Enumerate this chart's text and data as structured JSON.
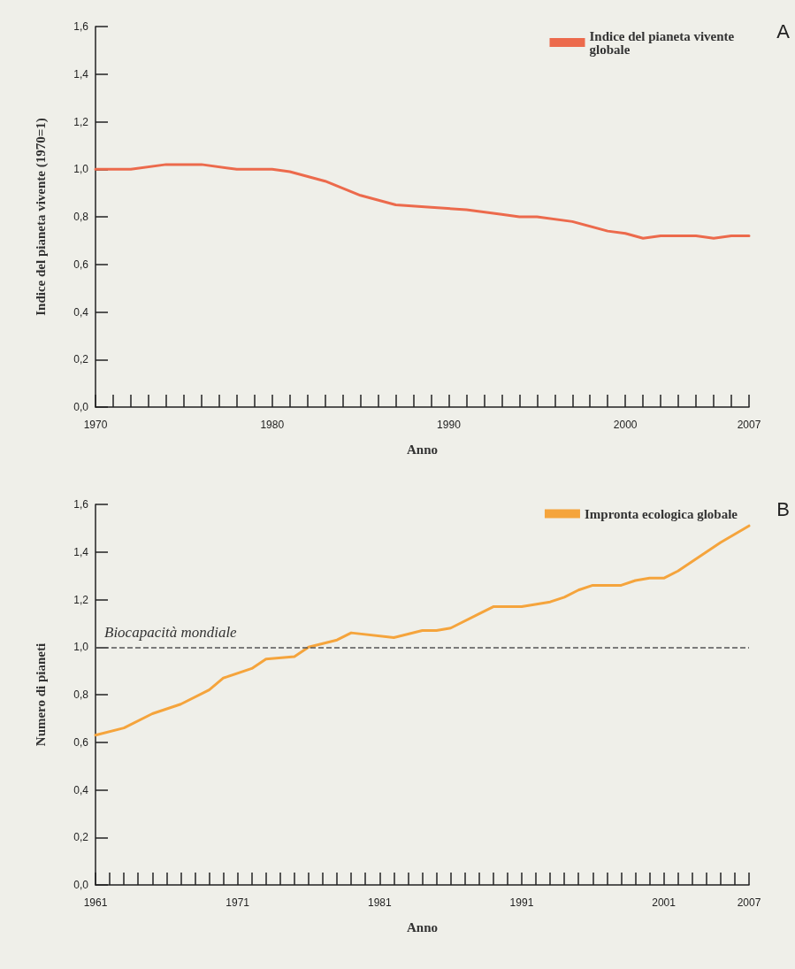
{
  "chart_data": [
    {
      "type": "line",
      "xlabel": "Anno",
      "ylabel": "Indice del pianeta vivente (1970=1)",
      "annotations": [
        "A"
      ],
      "legend": "top right",
      "grid": false,
      "marker": "none",
      "line_style": "solid",
      "x": [
        1970,
        1972,
        1974,
        1976,
        1978,
        1980,
        1981,
        1983,
        1985,
        1987,
        1989,
        1991,
        1993,
        1994,
        1995,
        1997,
        1999,
        2000,
        2001,
        2002,
        2004,
        2005,
        2006,
        2007
      ],
      "series": [
        {
          "name": "Indice del pianeta vivente globale",
          "color": "#ec6a4c",
          "values": [
            1.0,
            1.0,
            1.02,
            1.02,
            1.0,
            1.0,
            0.99,
            0.95,
            0.89,
            0.85,
            0.84,
            0.83,
            0.81,
            0.8,
            0.8,
            0.78,
            0.74,
            0.73,
            0.71,
            0.72,
            0.72,
            0.71,
            0.72,
            0.72
          ]
        }
      ],
      "xlim": [
        1970,
        2007
      ],
      "xticks": [
        1970,
        {
          "value": 1971,
          "label": null
        },
        {
          "value": 1972,
          "label": null
        },
        {
          "value": 1973,
          "label": null
        },
        {
          "value": 1974,
          "label": null
        },
        {
          "value": 1975,
          "label": null
        },
        {
          "value": 1976,
          "label": null
        },
        {
          "value": 1977,
          "label": null
        },
        {
          "value": 1978,
          "label": null
        },
        {
          "value": 1979,
          "label": null
        },
        1980,
        {
          "value": 1981,
          "label": null
        },
        {
          "value": 1982,
          "label": null
        },
        {
          "value": 1983,
          "label": null
        },
        {
          "value": 1984,
          "label": null
        },
        {
          "value": 1985,
          "label": null
        },
        {
          "value": 1986,
          "label": null
        },
        {
          "value": 1987,
          "label": null
        },
        {
          "value": 1988,
          "label": null
        },
        {
          "value": 1989,
          "label": null
        },
        1990,
        {
          "value": 1991,
          "label": null
        },
        {
          "value": 1992,
          "label": null
        },
        {
          "value": 1993,
          "label": null
        },
        {
          "value": 1994,
          "label": null
        },
        {
          "value": 1995,
          "label": null
        },
        {
          "value": 1996,
          "label": null
        },
        {
          "value": 1997,
          "label": null
        },
        {
          "value": 1998,
          "label": null
        },
        {
          "value": 1999,
          "label": null
        },
        2000,
        {
          "value": 2001,
          "label": null
        },
        {
          "value": 2002,
          "label": null
        },
        {
          "value": 2003,
          "label": null
        },
        {
          "value": 2004,
          "label": null
        },
        {
          "value": 2005,
          "label": null
        },
        {
          "value": 2006,
          "label": null
        },
        2007
      ],
      "ylim": [
        0,
        1.6
      ],
      "yticks": [
        {
          "value": 0,
          "label": "0,0"
        },
        {
          "value": 0.2,
          "label": "0,2"
        },
        {
          "value": 0.4,
          "label": "0,4"
        },
        {
          "value": 0.6,
          "label": "0,6"
        },
        {
          "value": 0.8,
          "label": "0,8"
        },
        {
          "value": 1.0,
          "label": "1,0"
        },
        {
          "value": 1.2,
          "label": "1,2"
        },
        {
          "value": 1.4,
          "label": "1,4"
        },
        {
          "value": 1.6,
          "label": "1,6"
        }
      ]
    },
    {
      "type": "line",
      "xlabel": "Anno",
      "ylabel": "Numero di pianeti",
      "annotations": [
        "B"
      ],
      "legend": "top right",
      "grid": false,
      "marker": "none",
      "line_style": "solid",
      "x": [
        1961,
        1963,
        1965,
        1967,
        1969,
        1970,
        1972,
        1973,
        1975,
        1976,
        1978,
        1979,
        1982,
        1984,
        1985,
        1986,
        1988,
        1989,
        1991,
        1993,
        1994,
        1995,
        1996,
        1998,
        1999,
        2000,
        2001,
        2002,
        2004,
        2005,
        2007
      ],
      "series": [
        {
          "name": "Impronta ecologica globale",
          "color": "#f5a43c",
          "values": [
            0.63,
            0.66,
            0.72,
            0.76,
            0.82,
            0.87,
            0.91,
            0.95,
            0.96,
            1.0,
            1.03,
            1.06,
            1.04,
            1.07,
            1.07,
            1.08,
            1.14,
            1.17,
            1.17,
            1.19,
            1.21,
            1.24,
            1.26,
            1.26,
            1.28,
            1.29,
            1.29,
            1.32,
            1.4,
            1.44,
            1.51
          ]
        }
      ],
      "ref_lines": [
        {
          "axis": "y",
          "value": 1.0,
          "label": "Biocapacità mondiale",
          "color": "#555555",
          "line_style": "dashed"
        }
      ],
      "xlim": [
        1961,
        2007
      ],
      "xticks": [
        1961,
        {
          "value": 1962,
          "label": null
        },
        {
          "value": 1963,
          "label": null
        },
        {
          "value": 1964,
          "label": null
        },
        {
          "value": 1965,
          "label": null
        },
        {
          "value": 1966,
          "label": null
        },
        {
          "value": 1967,
          "label": null
        },
        {
          "value": 1968,
          "label": null
        },
        {
          "value": 1969,
          "label": null
        },
        {
          "value": 1970,
          "label": null
        },
        1971,
        {
          "value": 1972,
          "label": null
        },
        {
          "value": 1973,
          "label": null
        },
        {
          "value": 1974,
          "label": null
        },
        {
          "value": 1975,
          "label": null
        },
        {
          "value": 1976,
          "label": null
        },
        {
          "value": 1977,
          "label": null
        },
        {
          "value": 1978,
          "label": null
        },
        {
          "value": 1979,
          "label": null
        },
        {
          "value": 1980,
          "label": null
        },
        1981,
        {
          "value": 1982,
          "label": null
        },
        {
          "value": 1983,
          "label": null
        },
        {
          "value": 1984,
          "label": null
        },
        {
          "value": 1985,
          "label": null
        },
        {
          "value": 1986,
          "label": null
        },
        {
          "value": 1987,
          "label": null
        },
        {
          "value": 1988,
          "label": null
        },
        {
          "value": 1989,
          "label": null
        },
        {
          "value": 1990,
          "label": null
        },
        1991,
        {
          "value": 1992,
          "label": null
        },
        {
          "value": 1993,
          "label": null
        },
        {
          "value": 1994,
          "label": null
        },
        {
          "value": 1995,
          "label": null
        },
        {
          "value": 1996,
          "label": null
        },
        {
          "value": 1997,
          "label": null
        },
        {
          "value": 1998,
          "label": null
        },
        {
          "value": 1999,
          "label": null
        },
        {
          "value": 2000,
          "label": null
        },
        2001,
        {
          "value": 2002,
          "label": null
        },
        {
          "value": 2003,
          "label": null
        },
        {
          "value": 2004,
          "label": null
        },
        {
          "value": 2005,
          "label": null
        },
        {
          "value": 2006,
          "label": null
        },
        2007
      ],
      "ylim": [
        0,
        1.6
      ],
      "yticks": [
        {
          "value": 0,
          "label": "0,0"
        },
        {
          "value": 0.2,
          "label": "0,2"
        },
        {
          "value": 0.4,
          "label": "0,4"
        },
        {
          "value": 0.6,
          "label": "0,6"
        },
        {
          "value": 0.8,
          "label": "0,8"
        },
        {
          "value": 1.0,
          "label": "1,0"
        },
        {
          "value": 1.2,
          "label": "1,2"
        },
        {
          "value": 1.4,
          "label": "1,4"
        },
        {
          "value": 1.6,
          "label": "1,6"
        }
      ]
    }
  ]
}
